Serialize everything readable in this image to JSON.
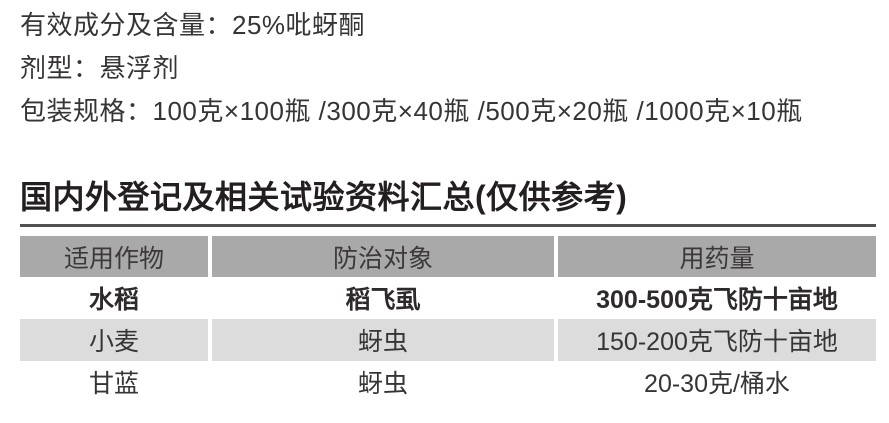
{
  "product_info": {
    "active_ingredient_line": "有效成分及含量：25%吡蚜酮",
    "formulation_line": "剂型：悬浮剂",
    "packaging_line": "包装规格：100克×100瓶 /300克×40瓶 /500克×20瓶 /1000克×10瓶"
  },
  "section": {
    "heading": "国内外登记及相关试验资料汇总(仅供参考)"
  },
  "table": {
    "headers": [
      "适用作物",
      "防治对象",
      "用药量"
    ],
    "rows": [
      {
        "crop": "水稻",
        "target": "稻飞虱",
        "dosage": "300-500克飞防十亩地",
        "bold": true,
        "shaded": false
      },
      {
        "crop": "小麦",
        "target": "蚜虫",
        "dosage": "150-200克飞防十亩地",
        "bold": false,
        "shaded": true
      },
      {
        "crop": "甘蓝",
        "target": "蚜虫",
        "dosage": "20-30克/桶水",
        "bold": false,
        "shaded": false
      }
    ]
  },
  "colors": {
    "header_background": "#a9a9a9",
    "shaded_row_background": "#dcdcdc",
    "rule": "#515153",
    "heading_text": "#231f20",
    "body_text": "#373435"
  }
}
